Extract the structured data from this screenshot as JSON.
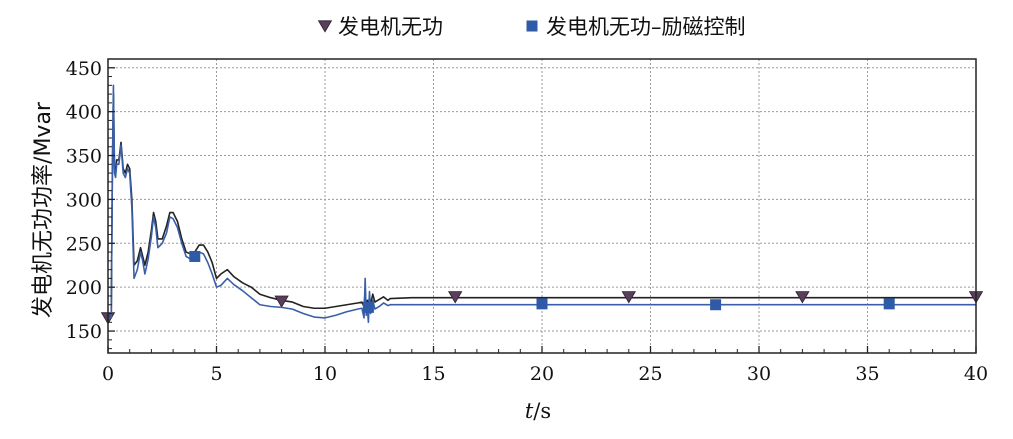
{
  "chart_data": {
    "type": "line",
    "xlabel": "t/s",
    "ylabel": "发电机无功功率/Mvar",
    "xlim": [
      0,
      40
    ],
    "ylim": [
      125,
      460
    ],
    "xticks": [
      0,
      5,
      10,
      15,
      20,
      25,
      30,
      35,
      40
    ],
    "yticks": [
      150,
      200,
      250,
      300,
      350,
      400,
      450
    ],
    "grid": true,
    "legend": "top-center",
    "series": [
      {
        "name": "发电机无功",
        "color": "#222222",
        "marker": "triangle-down",
        "marker_color": "#5a3f5c",
        "x": [
          0,
          0.15,
          0.2,
          0.25,
          0.3,
          0.35,
          0.4,
          0.5,
          0.6,
          0.7,
          0.8,
          0.9,
          1.0,
          1.1,
          1.2,
          1.35,
          1.5,
          1.6,
          1.7,
          1.85,
          2.0,
          2.1,
          2.2,
          2.3,
          2.5,
          2.7,
          2.85,
          3.0,
          3.2,
          3.4,
          3.6,
          3.8,
          4.0,
          4.2,
          4.4,
          4.6,
          4.8,
          5.0,
          5.2,
          5.5,
          5.8,
          6.2,
          6.6,
          7.0,
          7.5,
          8.0,
          8.5,
          9.0,
          9.5,
          10.0,
          10.5,
          11.0,
          11.5,
          11.7,
          11.8,
          11.85,
          11.9,
          11.95,
          12.0,
          12.05,
          12.1,
          12.2,
          12.3,
          12.5,
          12.7,
          12.9,
          13.0,
          14,
          16,
          18,
          20,
          22,
          24,
          26,
          28,
          30,
          32,
          34,
          36,
          38,
          40
        ],
        "y": [
          165,
          165,
          330,
          420,
          335,
          330,
          345,
          345,
          365,
          335,
          330,
          340,
          335,
          300,
          225,
          230,
          245,
          235,
          225,
          240,
          265,
          285,
          275,
          255,
          255,
          270,
          285,
          285,
          275,
          255,
          240,
          238,
          240,
          248,
          248,
          240,
          228,
          210,
          215,
          220,
          212,
          205,
          200,
          192,
          188,
          185,
          183,
          178,
          176,
          176,
          178,
          180,
          182,
          183,
          178,
          196,
          176,
          185,
          178,
          190,
          180,
          192,
          183,
          186,
          189,
          185,
          187,
          188,
          188,
          188,
          188,
          188,
          188,
          188,
          188,
          188,
          188,
          188,
          188,
          188,
          188
        ],
        "marker_x": [
          0,
          8,
          16,
          24,
          32,
          40
        ],
        "marker_y": [
          165,
          184,
          189,
          189,
          189,
          189
        ]
      },
      {
        "name": "发电机无功–励磁控制",
        "color": "#3a5fa8",
        "marker": "square",
        "marker_color": "#2e5aa8",
        "x": [
          0,
          0.15,
          0.2,
          0.25,
          0.3,
          0.35,
          0.4,
          0.5,
          0.6,
          0.7,
          0.8,
          0.9,
          1.0,
          1.1,
          1.2,
          1.35,
          1.5,
          1.6,
          1.7,
          1.85,
          2.0,
          2.1,
          2.2,
          2.3,
          2.5,
          2.7,
          2.85,
          3.0,
          3.2,
          3.4,
          3.6,
          3.8,
          4.0,
          4.2,
          4.4,
          4.6,
          4.8,
          5.0,
          5.2,
          5.5,
          5.8,
          6.2,
          6.6,
          7.0,
          7.5,
          8.0,
          8.5,
          9.0,
          9.5,
          10.0,
          10.5,
          11.0,
          11.5,
          11.7,
          11.8,
          11.85,
          11.9,
          11.95,
          12.0,
          12.05,
          12.1,
          12.2,
          12.3,
          12.5,
          12.7,
          12.9,
          13.0,
          14,
          16,
          18,
          20,
          22,
          24,
          26,
          28,
          30,
          32,
          34,
          36,
          38,
          40
        ],
        "y": [
          165,
          165,
          325,
          430,
          330,
          325,
          340,
          340,
          362,
          330,
          325,
          335,
          330,
          290,
          210,
          220,
          240,
          230,
          215,
          232,
          258,
          280,
          268,
          245,
          250,
          262,
          280,
          278,
          268,
          250,
          235,
          232,
          233,
          240,
          238,
          228,
          215,
          200,
          202,
          210,
          203,
          196,
          188,
          180,
          178,
          177,
          175,
          170,
          166,
          165,
          168,
          172,
          175,
          176,
          165,
          210,
          168,
          178,
          160,
          195,
          170,
          185,
          175,
          178,
          182,
          179,
          180,
          180,
          180,
          180,
          180,
          180,
          180,
          180,
          180,
          180,
          180,
          180,
          180,
          180,
          180
        ],
        "marker_x": [
          4,
          12,
          20,
          28,
          36
        ],
        "marker_y": [
          235,
          177,
          181,
          180,
          181
        ]
      }
    ]
  }
}
